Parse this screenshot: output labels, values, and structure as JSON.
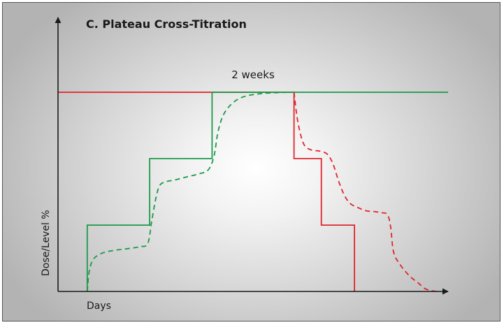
{
  "chart_data": {
    "type": "line",
    "title": "C. Plateau Cross-Titration",
    "xlabel": "Days",
    "ylabel": "Dose/Level %",
    "annotation": "2 weeks",
    "xlim": [
      0,
      100
    ],
    "ylim": [
      0,
      100
    ],
    "grid": false,
    "legend": "none",
    "series": [
      {
        "role": "old-drug-dose",
        "color": "#e0252b",
        "style": "solid",
        "x": [
          0,
          60.5,
          60.5,
          67.5,
          67.5,
          76,
          76
        ],
        "y": [
          100,
          100,
          66.7,
          66.7,
          33.3,
          33.3,
          0
        ]
      },
      {
        "role": "old-drug-level",
        "color": "#e0252b",
        "style": "dashed",
        "x": [
          60.5,
          61.5,
          63,
          65,
          67,
          69,
          70.5,
          72,
          73.5,
          75,
          77,
          79,
          81.5,
          83,
          84.5,
          85.3,
          86,
          87.5,
          90,
          92.5,
          94,
          95.5,
          97
        ],
        "y": [
          100,
          85,
          74,
          71,
          70.5,
          69,
          64,
          55,
          48,
          44,
          42,
          40.5,
          40,
          39.5,
          38.5,
          32,
          20,
          14,
          8,
          4,
          1.5,
          0.5,
          0
        ]
      },
      {
        "role": "new-drug-dose",
        "color": "#1a9a48",
        "style": "solid",
        "x": [
          7.5,
          7.5,
          23.5,
          23.5,
          39.5,
          39.5,
          100
        ],
        "y": [
          0,
          33.3,
          33.3,
          66.7,
          66.7,
          100,
          100
        ]
      },
      {
        "role": "new-drug-level",
        "color": "#1a9a48",
        "style": "dashed",
        "x": [
          7.5,
          8,
          9,
          11,
          14,
          18,
          21,
          23,
          24,
          25,
          26,
          27.5,
          30,
          33,
          36,
          38.5,
          40,
          41,
          42.5,
          45,
          48,
          52,
          56,
          60
        ],
        "y": [
          0,
          10,
          16,
          19,
          20.5,
          21.5,
          22.5,
          24,
          35,
          46,
          53,
          55,
          56,
          57.5,
          59,
          61,
          68,
          80,
          89,
          95,
          98,
          99.3,
          99.8,
          100
        ]
      }
    ]
  }
}
